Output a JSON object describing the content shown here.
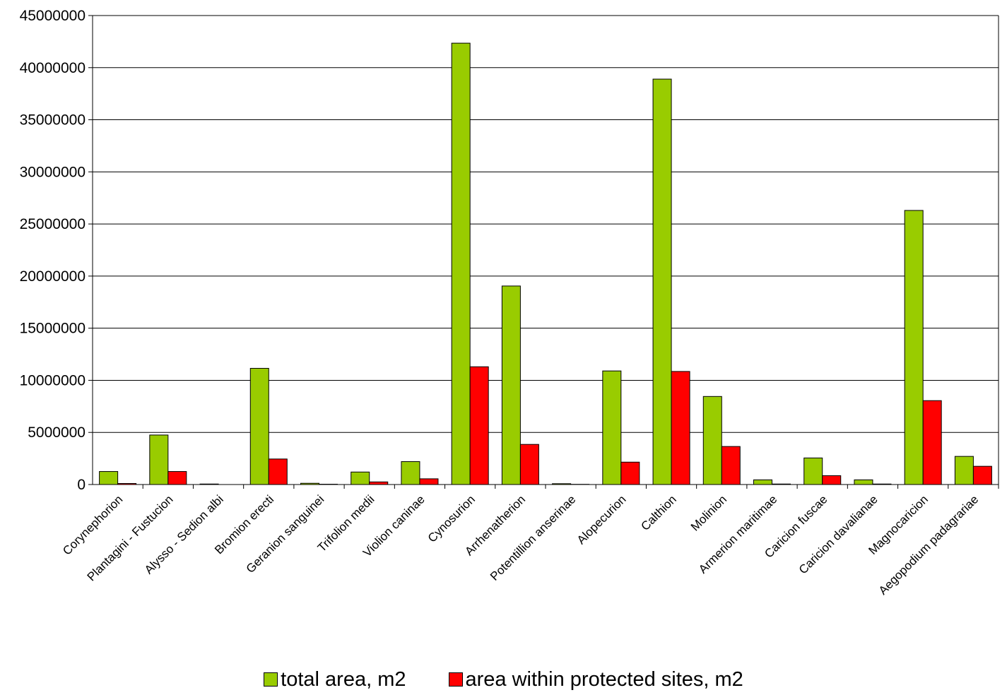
{
  "chart_data": {
    "type": "bar",
    "title": "",
    "xlabel": "",
    "ylabel": "",
    "ylim": [
      0,
      45000000
    ],
    "yticks": [
      "0",
      "5000000",
      "10000000",
      "15000000",
      "20000000",
      "25000000",
      "30000000",
      "35000000",
      "40000000",
      "45000000"
    ],
    "grid": true,
    "legend_position": "bottom",
    "categories": [
      "Corynephorion",
      "Plantagini - Fustucion",
      "Alysso - Sedion albi",
      "Bromion erecti",
      "Geranion sanguinei",
      "Trifolion medii",
      "Violion caninae",
      "Cynosurion",
      "Arrhenatherion",
      "Potentillion anserinae",
      "Alopecurion",
      "Calthion",
      "Molinion",
      "Armerion maritimae",
      "Caricion fuscae",
      "Caricion davalianae",
      "Magnocaricion",
      "Aegopodium padagrariae"
    ],
    "series": [
      {
        "name": "total area, m2",
        "color": "#99cc00",
        "values": [
          1250000,
          4750000,
          50000,
          11150000,
          120000,
          1200000,
          2200000,
          42350000,
          19050000,
          80000,
          10900000,
          38900000,
          8450000,
          450000,
          2550000,
          450000,
          26300000,
          2700000
        ]
      },
      {
        "name": "area within protected sites, m2",
        "color": "#ff0000",
        "values": [
          100000,
          1250000,
          0,
          2450000,
          30000,
          250000,
          550000,
          11300000,
          3850000,
          20000,
          2150000,
          10850000,
          3650000,
          50000,
          850000,
          50000,
          8050000,
          1750000
        ]
      }
    ]
  }
}
